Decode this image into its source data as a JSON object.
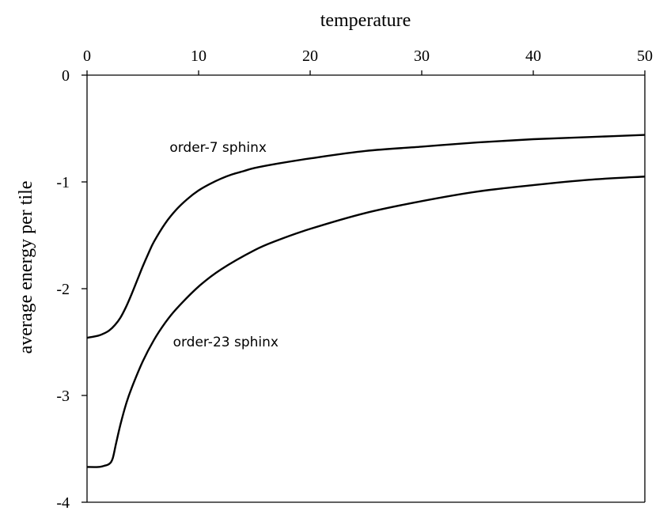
{
  "chart_data": {
    "type": "line",
    "title": "",
    "xlabel": "temperature",
    "ylabel": "average  energy per tile",
    "xlim": [
      0,
      50
    ],
    "ylim": [
      -4,
      0
    ],
    "x_ticks": [
      "0",
      "10",
      "20",
      "30",
      "40",
      "50"
    ],
    "y_ticks": [
      "0",
      "-1",
      "-2",
      "-3",
      "-4"
    ],
    "x_axis_position": "top",
    "grid": false,
    "legend": "none",
    "series": [
      {
        "name": "order-7 sphinx",
        "label_position": "above",
        "x": [
          0,
          1,
          1.5,
          2,
          2.5,
          3,
          3.5,
          4,
          4.5,
          5,
          5.5,
          6,
          7,
          8,
          9,
          10,
          11,
          12,
          13,
          14,
          15,
          17,
          20,
          25,
          30,
          35,
          40,
          45,
          50
        ],
        "y": [
          -2.46,
          -2.44,
          -2.42,
          -2.39,
          -2.34,
          -2.27,
          -2.17,
          -2.05,
          -1.92,
          -1.79,
          -1.67,
          -1.56,
          -1.39,
          -1.26,
          -1.16,
          -1.08,
          -1.02,
          -0.97,
          -0.93,
          -0.9,
          -0.87,
          -0.83,
          -0.78,
          -0.71,
          -0.67,
          -0.63,
          -0.6,
          -0.58,
          -0.56
        ]
      },
      {
        "name": "order-23 sphinx",
        "label_position": "below",
        "x": [
          0,
          1,
          1.5,
          2,
          2.3,
          2.6,
          3,
          3.5,
          4,
          5,
          6,
          7,
          8,
          10,
          12,
          15,
          17,
          20,
          25,
          30,
          35,
          40,
          45,
          50
        ],
        "y": [
          -3.67,
          -3.67,
          -3.66,
          -3.64,
          -3.59,
          -3.45,
          -3.27,
          -3.08,
          -2.93,
          -2.68,
          -2.48,
          -2.32,
          -2.19,
          -1.98,
          -1.82,
          -1.64,
          -1.55,
          -1.44,
          -1.29,
          -1.18,
          -1.09,
          -1.03,
          -0.98,
          -0.95
        ]
      }
    ]
  }
}
